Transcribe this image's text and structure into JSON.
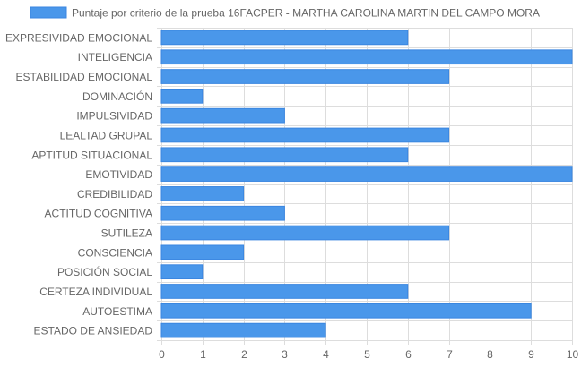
{
  "chart_data": {
    "type": "bar",
    "orientation": "horizontal",
    "legend": {
      "position": "top",
      "label": "Puntaje por criterio de la prueba 16FACPER - MARTHA CAROLINA MARTIN DEL CAMPO MORA"
    },
    "categories": [
      "EXPRESIVIDAD EMOCIONAL",
      "INTELIGENCIA",
      "ESTABILIDAD EMOCIONAL",
      "DOMINACIÓN",
      "IMPULSIVIDAD",
      "LEALTAD GRUPAL",
      "APTITUD SITUACIONAL",
      "EMOTIVIDAD",
      "CREDIBILIDAD",
      "ACTITUD COGNITIVA",
      "SUTILEZA",
      "CONSCIENCIA",
      "POSICIÓN SOCIAL",
      "CERTEZA INDIVIDUAL",
      "AUTOESTIMA",
      "ESTADO DE ANSIEDAD"
    ],
    "series": [
      {
        "name": "Puntaje por criterio de la prueba 16FACPER - MARTHA CAROLINA MARTIN DEL CAMPO MORA",
        "values": [
          6,
          10,
          7,
          1,
          3,
          7,
          6,
          10,
          2,
          3,
          7,
          2,
          1,
          6,
          9,
          4
        ]
      }
    ],
    "x_ticks": [
      "0",
      "1",
      "2",
      "3",
      "4",
      "5",
      "6",
      "7",
      "8",
      "9",
      "10"
    ],
    "xlim": [
      0,
      10
    ],
    "grid": true,
    "colors": {
      "bar_fill": "#4a97ea",
      "bar_border": "#3a86e0",
      "grid": "#dddddd",
      "tick_text": "#666666"
    }
  }
}
